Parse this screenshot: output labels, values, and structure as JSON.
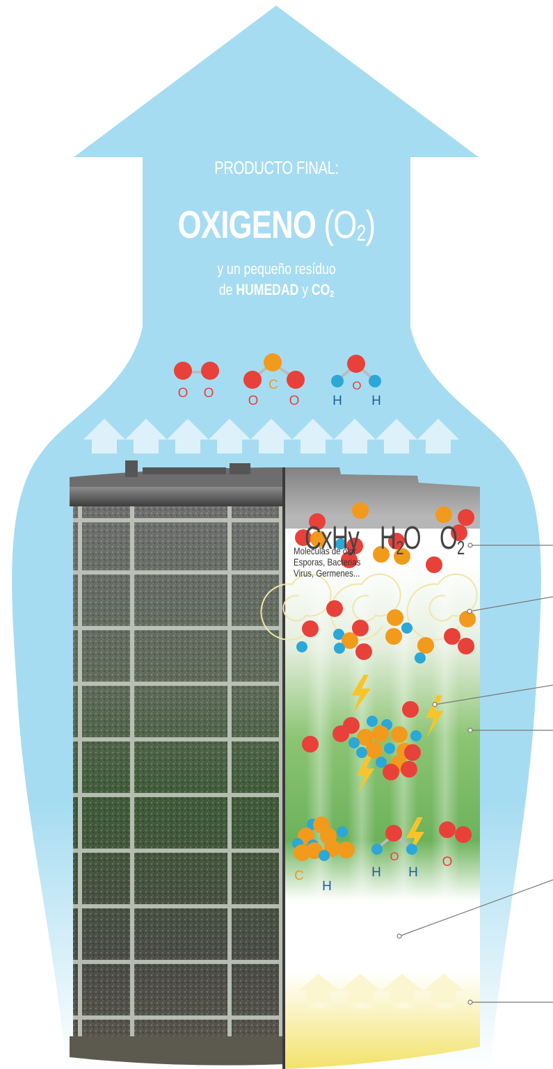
{
  "title": {
    "line1": "PRODUCTO FINAL:",
    "main_word": "OXIGENO",
    "main_formula_open": "(O",
    "main_formula_sub": "2",
    "main_formula_close": ")",
    "line3": "y un pequeño resíduo",
    "line4_prefix": "de ",
    "line4_bold1": "HUMEDAD",
    "line4_mid": " y ",
    "line4_bold2": "CO",
    "line4_bold2_sub": "2"
  },
  "molecule_labels": {
    "o2": [
      "O",
      "O"
    ],
    "co2": [
      "O",
      "C",
      "O"
    ],
    "h2o": [
      "H",
      "O",
      "H"
    ],
    "hydrocarbon": [
      "C",
      "H"
    ],
    "bottom_h2o": [
      "H",
      "O",
      "H"
    ],
    "bottom_o2": [
      "O"
    ]
  },
  "formulas": {
    "cxhy": "CxHy",
    "h2o_h": "H",
    "h2o_sub": "2",
    "h2o_o": "O",
    "o2_o": "O",
    "o2_sub": "2"
  },
  "caption": {
    "line1": "Moleculas de olor",
    "line2": "Esporas, Bacterias",
    "line3": "Virus, Germenes..."
  },
  "colors": {
    "arrow_blue": "#a6dcf1",
    "oxygen_red": "#e8413a",
    "carbon_orange": "#f29a1c",
    "hydrogen_blue": "#2ba7d8",
    "filter_green": "#7ab86a",
    "bottom_yellow": "#f3e26a",
    "lightning": "#f7c52a"
  },
  "icons": [
    "up-arrow-icon",
    "lightning-icon",
    "swirl-icon",
    "molecule-icon"
  ]
}
